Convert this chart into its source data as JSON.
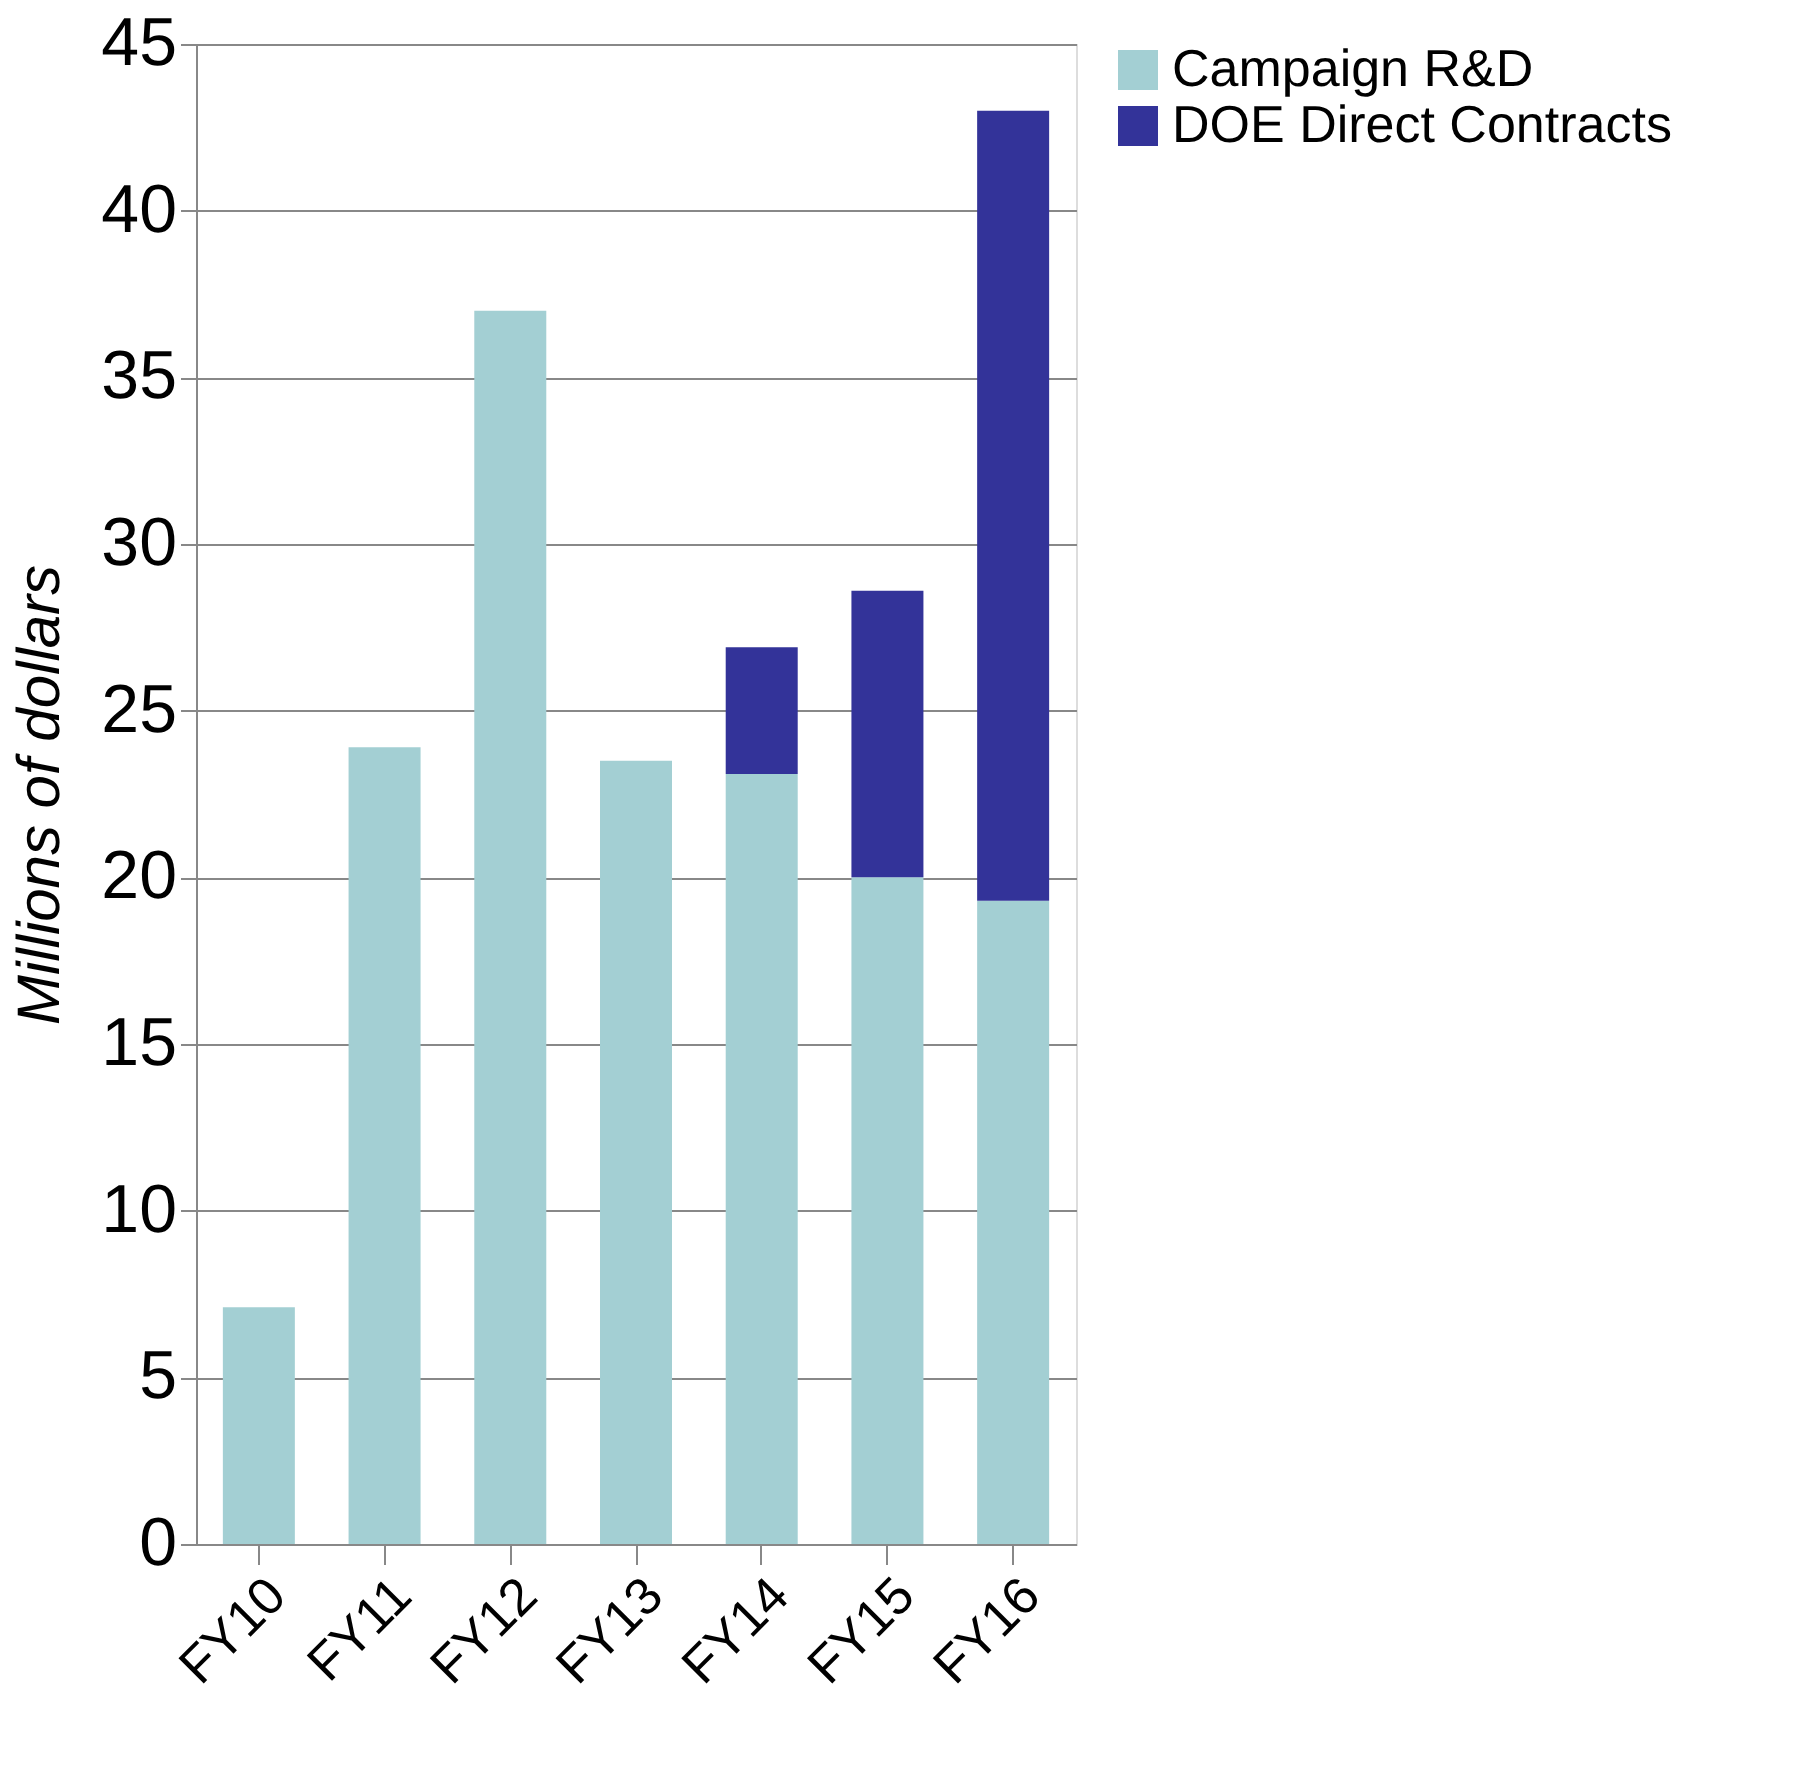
{
  "chart_data": {
    "type": "bar",
    "stacked": true,
    "ylabel": "Millions of dollars",
    "categories": [
      "FY10",
      "FY11",
      "FY12",
      "FY13",
      "FY14",
      "FY15",
      "FY16"
    ],
    "series": [
      {
        "name": "Campaign R&D",
        "color": "#a3cfd3",
        "values": [
          7.1,
          23.9,
          37.0,
          23.5,
          23.1,
          20.0,
          19.3
        ]
      },
      {
        "name": "DOE Direct Contracts",
        "color": "#333399",
        "values": [
          null,
          null,
          null,
          null,
          3.8,
          8.6,
          23.7
        ]
      }
    ],
    "ylim": [
      0,
      45
    ],
    "yticks": [
      0,
      5,
      10,
      15,
      20,
      25,
      30,
      35,
      40,
      45
    ],
    "grid": "y",
    "legend": "right"
  }
}
